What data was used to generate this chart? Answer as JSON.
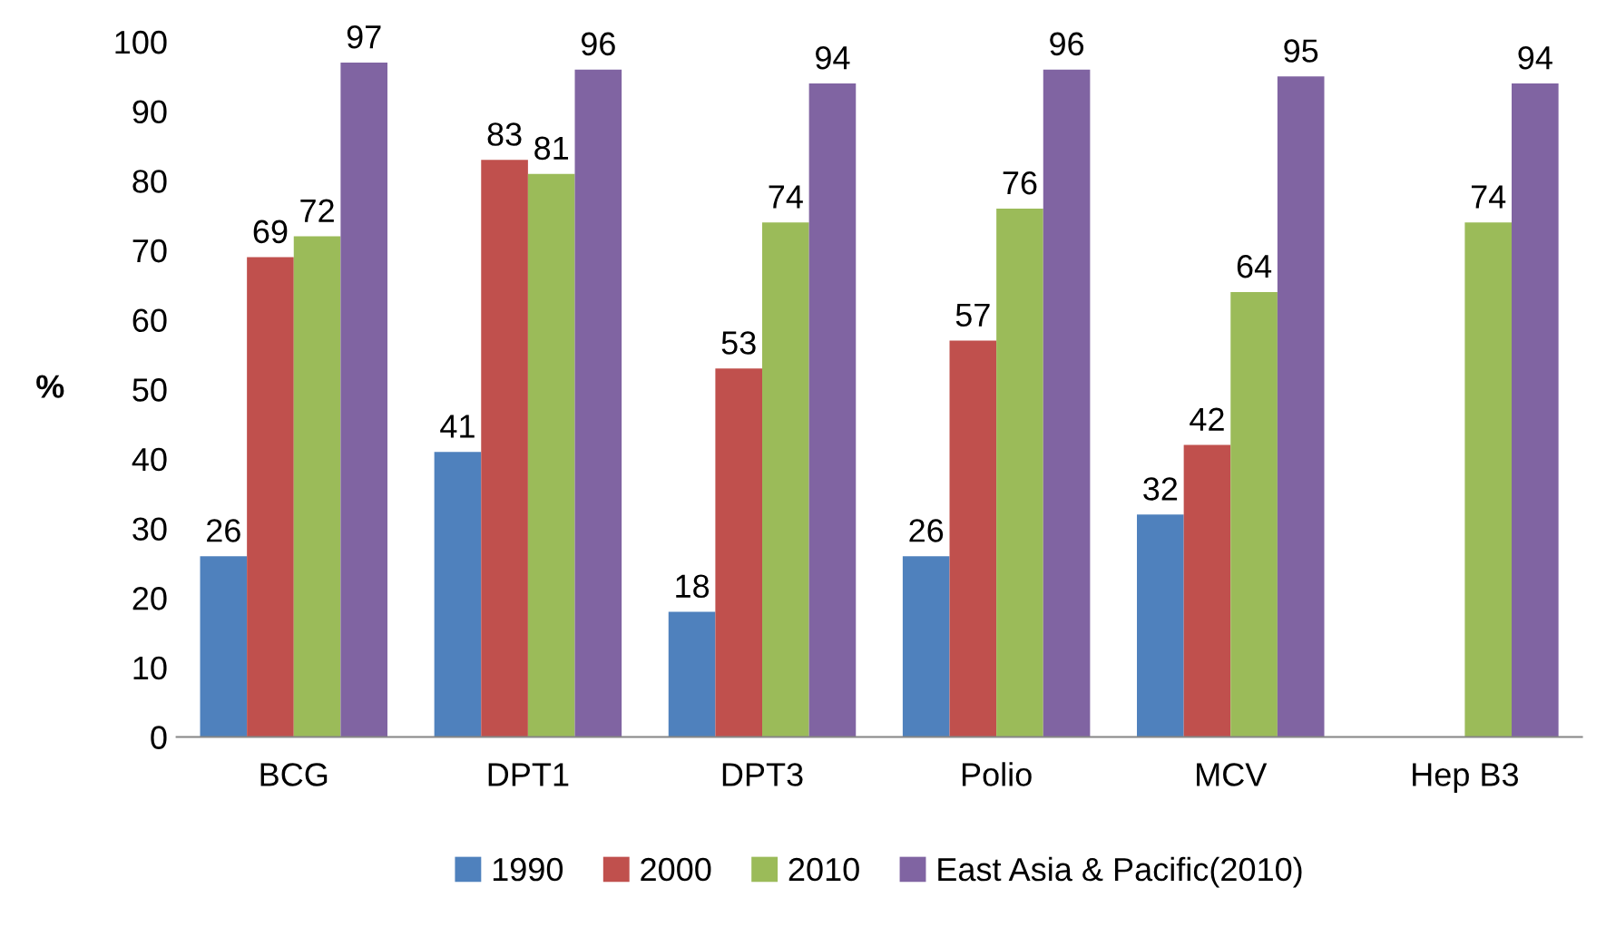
{
  "chart_data": {
    "type": "bar",
    "ylabel": "%",
    "categories": [
      "BCG",
      "DPT1",
      "DPT3",
      "Polio",
      "MCV",
      "Hep B3"
    ],
    "series": [
      {
        "name": "1990",
        "color": "#4f81bd",
        "values": [
          26,
          41,
          18,
          26,
          32,
          null
        ]
      },
      {
        "name": "2000",
        "color": "#c0504d",
        "values": [
          69,
          83,
          53,
          57,
          42,
          null
        ]
      },
      {
        "name": "2010",
        "color": "#9bbb59",
        "values": [
          72,
          81,
          74,
          76,
          64,
          74
        ]
      },
      {
        "name": "East Asia & Pacific(2010)",
        "color": "#8064a2",
        "values": [
          97,
          96,
          94,
          96,
          95,
          94
        ]
      }
    ],
    "ylim": [
      0,
      100
    ],
    "yticks": [
      0,
      10,
      20,
      30,
      40,
      50,
      60,
      70,
      80,
      90,
      100
    ],
    "data_labels": true,
    "grid": false,
    "legend": "bottom"
  }
}
